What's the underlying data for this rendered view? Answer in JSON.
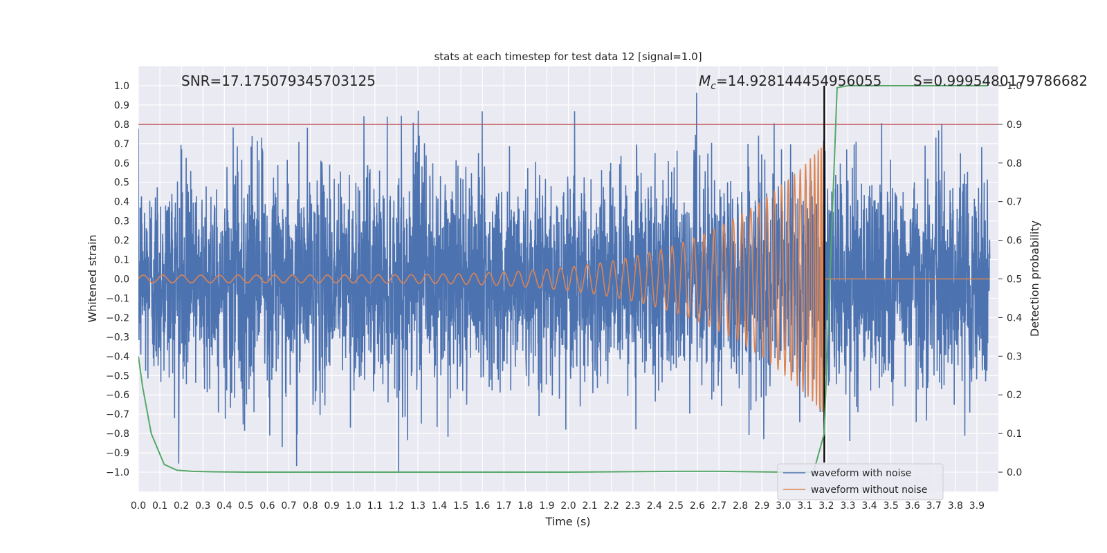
{
  "chart_data": {
    "type": "line",
    "title": "stats at each timestep for test data 12 [signal=1.0]",
    "xlabel": "Time (s)",
    "ylabel_left": "Whitened strain",
    "ylabel_right": "Detection probability",
    "xlim": [
      0.0,
      4.0
    ],
    "ylim_left": [
      -1.1,
      1.1
    ],
    "ylim_right": [
      -0.05,
      1.05
    ],
    "x_ticks": [
      "0.0",
      "0.1",
      "0.2",
      "0.3",
      "0.4",
      "0.5",
      "0.6",
      "0.7",
      "0.8",
      "0.9",
      "1.0",
      "1.1",
      "1.2",
      "1.3",
      "1.4",
      "1.5",
      "1.6",
      "1.7",
      "1.8",
      "1.9",
      "2.0",
      "2.1",
      "2.2",
      "2.3",
      "2.4",
      "2.5",
      "2.6",
      "2.7",
      "2.8",
      "2.9",
      "3.0",
      "3.1",
      "3.2",
      "3.3",
      "3.4",
      "3.5",
      "3.6",
      "3.7",
      "3.8",
      "3.9"
    ],
    "y_ticks_left": [
      "1.0",
      "0.9",
      "0.8",
      "0.7",
      "0.6",
      "0.5",
      "0.4",
      "0.3",
      "0.2",
      "0.1",
      "0.0",
      "−0.1",
      "−0.2",
      "−0.3",
      "−0.4",
      "−0.5",
      "−0.6",
      "−0.7",
      "−0.8",
      "−0.9",
      "−1.0"
    ],
    "y_ticks_right": [
      "1.0",
      "0.9",
      "0.8",
      "0.7",
      "0.6",
      "0.5",
      "0.4",
      "0.3",
      "0.2",
      "0.1",
      "0.0"
    ],
    "grid": true,
    "legend_position": "bottom-right",
    "annotations": {
      "snr": "SNR=17.175079345703125",
      "mc_symbol": "M",
      "mc_sub": "c",
      "mc_value": "=14.928144454956055",
      "s": "S=0.9995480179786682"
    },
    "threshold_line": {
      "axis": "right",
      "value": 0.9,
      "color": "#c44e52"
    },
    "merger_time_line": {
      "x": 3.19,
      "color": "#000000"
    },
    "series": [
      {
        "name": "waveform with noise",
        "axis": "left",
        "color": "#4c72b0",
        "kind": "noise",
        "amplitude_envelope_max": 1.0,
        "samples": 4096
      },
      {
        "name": "waveform without noise",
        "axis": "left",
        "color": "#dd8452",
        "kind": "chirp",
        "start_amplitude": 0.02,
        "peak_amplitude": 0.7,
        "merger_time": 3.19,
        "start_frequency_hz": 11,
        "end_frequency_hz": 250
      },
      {
        "name": "Detection probability",
        "axis": "right",
        "color": "#55a868",
        "x": [
          0.0,
          0.02,
          0.06,
          0.12,
          0.18,
          0.25,
          0.35,
          0.5,
          1.0,
          1.5,
          2.0,
          2.5,
          2.7,
          3.0,
          3.1,
          3.14,
          3.19,
          3.22,
          3.25,
          3.3,
          3.5,
          3.95
        ],
        "y": [
          0.3,
          0.22,
          0.1,
          0.02,
          0.005,
          0.002,
          0.001,
          0.0,
          0.0,
          0.0,
          0.0,
          0.002,
          0.002,
          0.0,
          0.0,
          0.0,
          0.1,
          0.55,
          0.995,
          1.0,
          1.0,
          1.0
        ]
      }
    ]
  }
}
